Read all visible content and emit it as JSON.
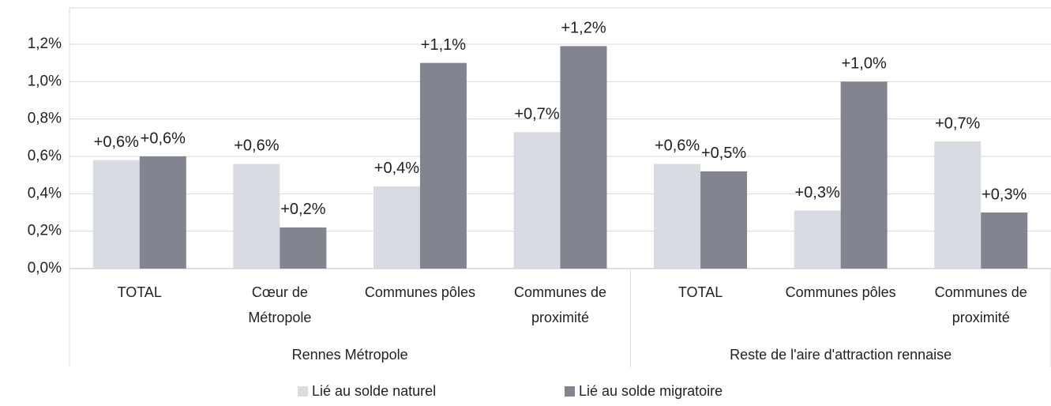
{
  "chart_data": {
    "type": "bar",
    "categories": [
      "TOTAL",
      "Cœur de\nMétropole",
      "Communes pôles",
      "Communes de\nproximité",
      "TOTAL",
      "Communes pôles",
      "Communes de\nproximité"
    ],
    "groups": [
      {
        "name": "Rennes Métropole",
        "size": 4
      },
      {
        "name": "Reste de l'aire d'attraction rennaise",
        "size": 3
      }
    ],
    "series": [
      {
        "name": "Lié au solde naturel",
        "color": "#d9dbe3",
        "values": [
          0.58,
          0.56,
          0.44,
          0.73,
          0.56,
          0.31,
          0.68
        ],
        "value_labels": [
          "+0,6%",
          "+0,6%",
          "+0,4%",
          "+0,7%",
          "+0,6%",
          "+0,3%",
          "+0,7%"
        ]
      },
      {
        "name": "Lié au solde migratoire",
        "color": "#82858f",
        "values": [
          0.6,
          0.22,
          1.1,
          1.19,
          0.52,
          1.0,
          0.3
        ],
        "value_labels": [
          "+0,6%",
          "+0,2%",
          "+1,1%",
          "+1,2%",
          "+0,5%",
          "+1,0%",
          "+0,3%"
        ]
      }
    ],
    "ylim": [
      0,
      1.2
    ],
    "yticks": [
      {
        "value": 0,
        "label": "0,0%"
      },
      {
        "value": 0.2,
        "label": "0,2%"
      },
      {
        "value": 0.4,
        "label": "0,4%"
      },
      {
        "value": 0.6,
        "label": "0,6%"
      },
      {
        "value": 0.8,
        "label": "0,8%"
      },
      {
        "value": 1.0,
        "label": "1,0%"
      },
      {
        "value": 1.2,
        "label": "1,2%"
      }
    ],
    "grid": true,
    "legend": "bottom"
  }
}
